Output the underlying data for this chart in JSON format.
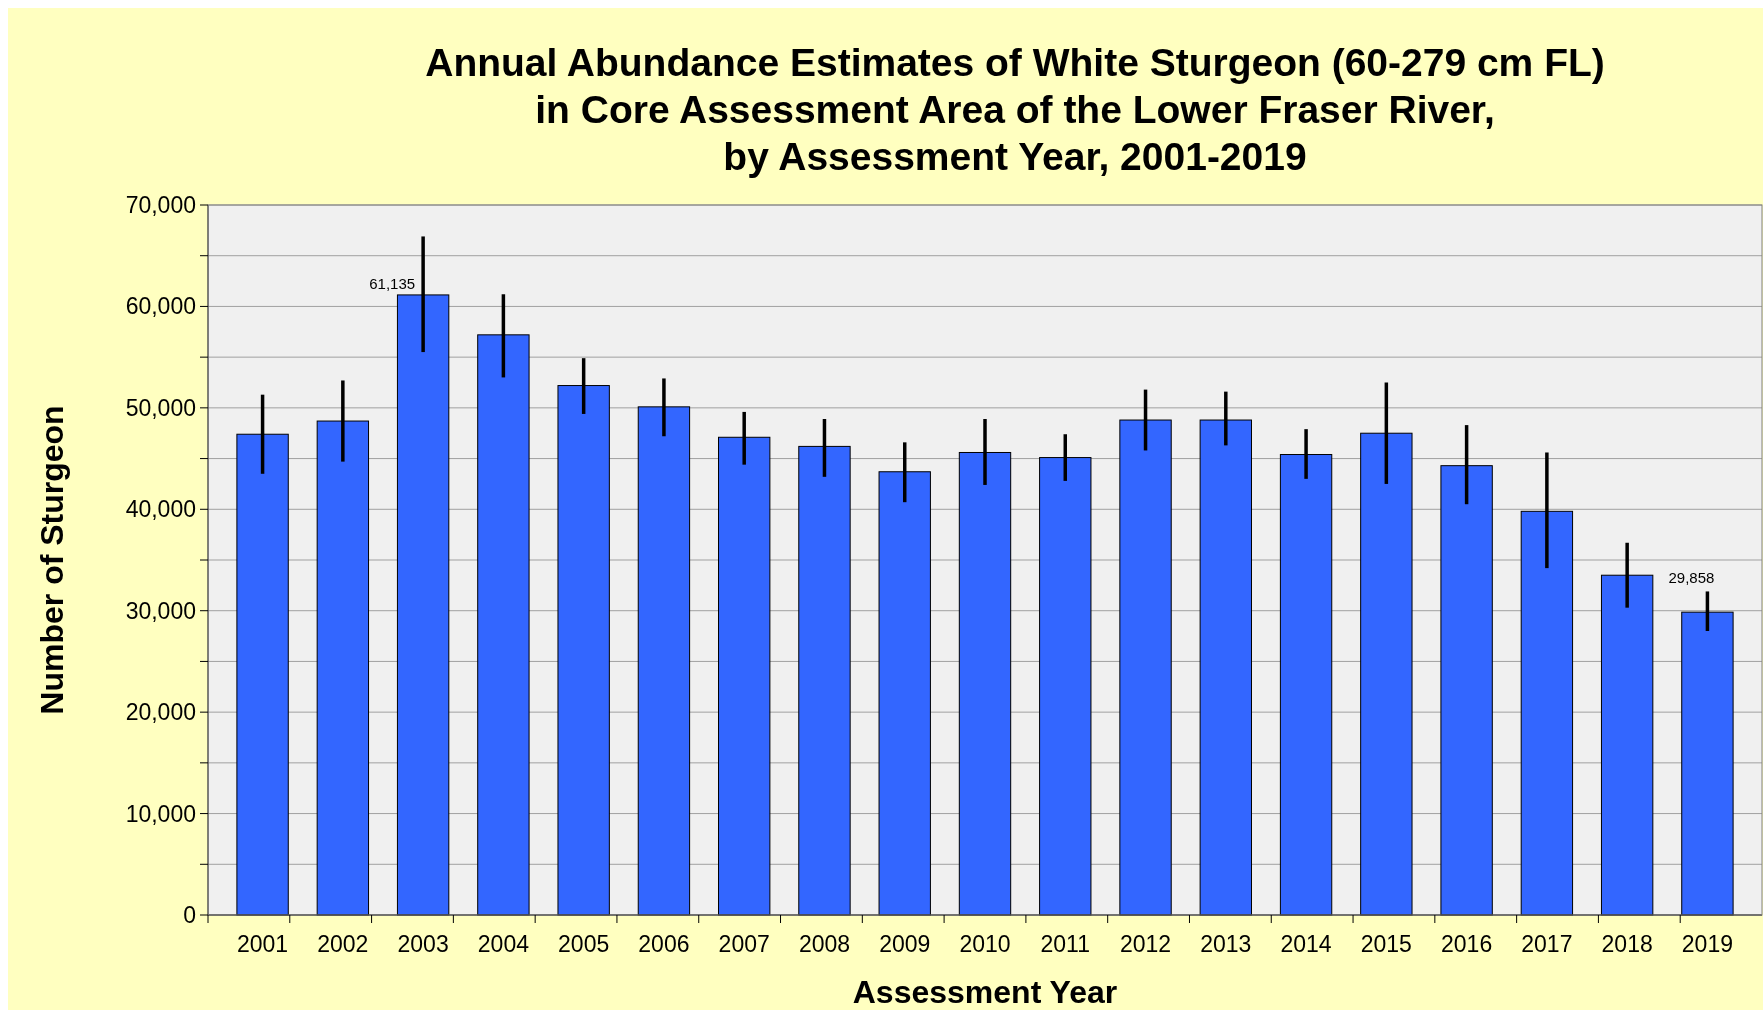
{
  "chart_data": {
    "type": "bar",
    "title": "Annual Abundance Estimates of White Sturgeon (60-279 cm FL)\nin Core Assessment Area of the Lower Fraser River,\nby Assessment Year, 2001-2019",
    "xlabel": "Assessment Year",
    "ylabel": "Number of Sturgeon",
    "categories": [
      "2001",
      "2002",
      "2003",
      "2004",
      "2005",
      "2006",
      "2007",
      "2008",
      "2009",
      "2010",
      "2011",
      "2012",
      "2013",
      "2014",
      "2015",
      "2016",
      "2017",
      "2018",
      "2019"
    ],
    "values": [
      47400,
      48700,
      61135,
      57200,
      52200,
      50100,
      47100,
      46200,
      43700,
      45600,
      45100,
      48800,
      48800,
      45400,
      47500,
      44300,
      39800,
      33500,
      29858
    ],
    "errors": [
      [
        43500,
        51300
      ],
      [
        44700,
        52700
      ],
      [
        55500,
        66900
      ],
      [
        53000,
        61200
      ],
      [
        49400,
        54900
      ],
      [
        47200,
        52900
      ],
      [
        44400,
        49600
      ],
      [
        43200,
        48900
      ],
      [
        40700,
        46600
      ],
      [
        42400,
        48900
      ],
      [
        42800,
        47400
      ],
      [
        45800,
        51800
      ],
      [
        46300,
        51600
      ],
      [
        43000,
        47900
      ],
      [
        42500,
        52500
      ],
      [
        40500,
        48300
      ],
      [
        34200,
        45600
      ],
      [
        30300,
        36700
      ],
      [
        28000,
        31900
      ]
    ],
    "value_labels": [
      null,
      null,
      "61,135",
      null,
      null,
      null,
      null,
      null,
      null,
      null,
      null,
      null,
      null,
      null,
      null,
      null,
      null,
      null,
      "29,858"
    ],
    "color": "#3366ff",
    "ylim": [
      0,
      70000
    ],
    "yticks": [
      {
        "value": 0,
        "label": "0"
      },
      {
        "value": 5000,
        "label": null
      },
      {
        "value": 10000,
        "label": "10,000"
      },
      {
        "value": 15000,
        "label": null
      },
      {
        "value": 20000,
        "label": "20,000"
      },
      {
        "value": 25000,
        "label": null
      },
      {
        "value": 30000,
        "label": "30,000"
      },
      {
        "value": 35000,
        "label": null
      },
      {
        "value": 40000,
        "label": "40,000"
      },
      {
        "value": 45000,
        "label": null
      },
      {
        "value": 50000,
        "label": "50,000"
      },
      {
        "value": 55000,
        "label": null
      },
      {
        "value": 60000,
        "label": "60,000"
      },
      {
        "value": 65000,
        "label": null
      },
      {
        "value": 70000,
        "label": "70,000"
      }
    ],
    "grid": "y"
  }
}
